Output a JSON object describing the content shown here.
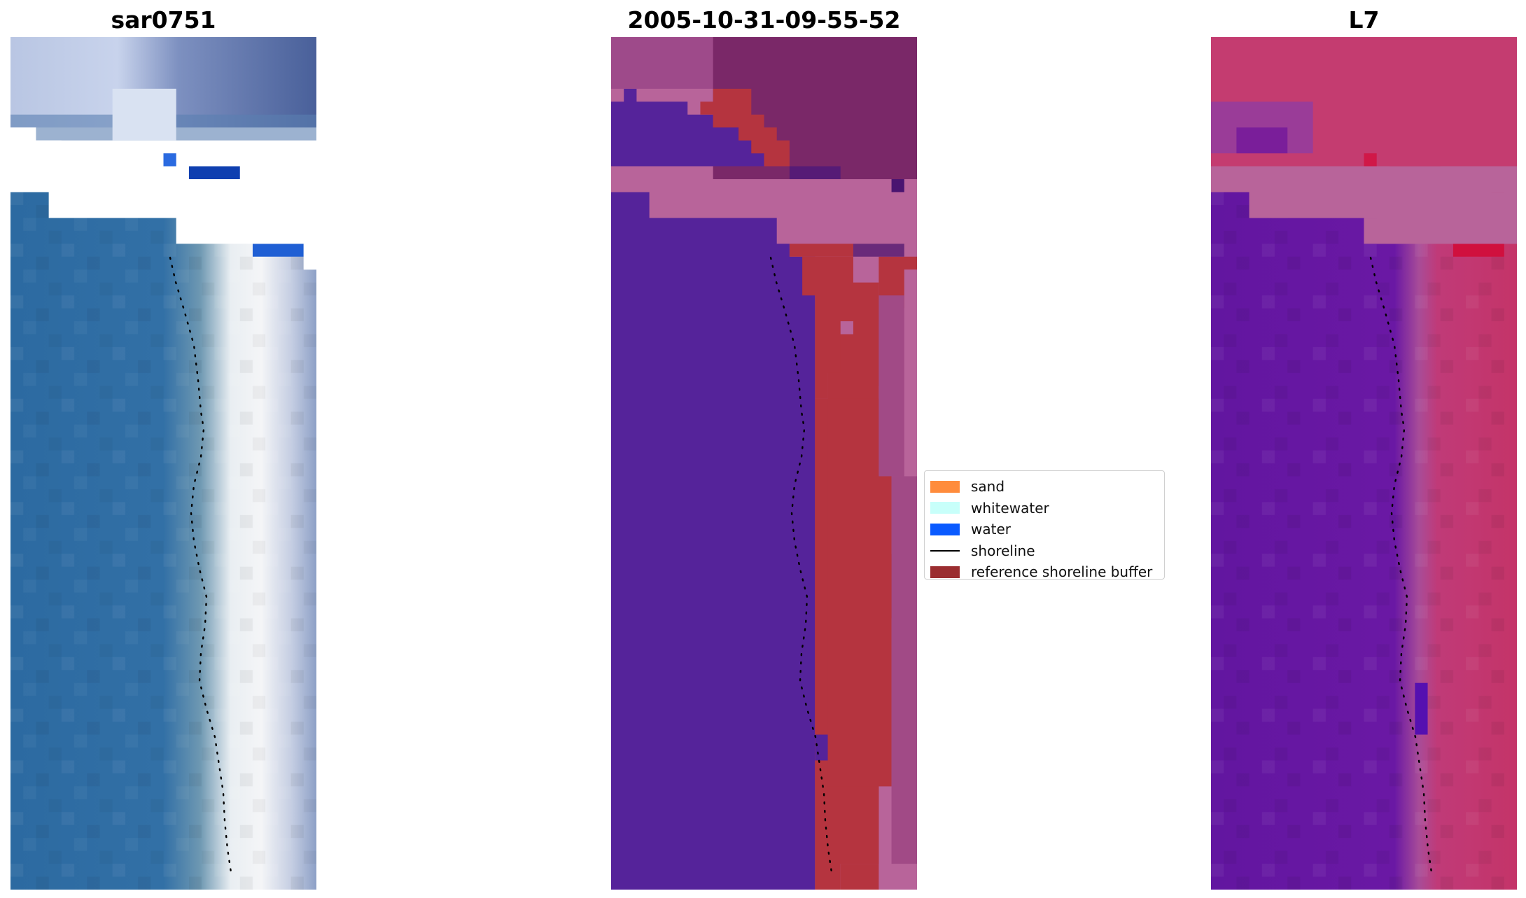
{
  "panels": [
    {
      "id": "rgb",
      "title": "sar0751"
    },
    {
      "id": "class",
      "title": "2005-10-31-09-55-52"
    },
    {
      "id": "index",
      "title": "L7"
    }
  ],
  "legend": {
    "placement": "center",
    "items": [
      {
        "label": "sand",
        "color": "#FF8C3C",
        "kind": "patch"
      },
      {
        "label": "whitewater",
        "color": "#C8FFFA",
        "kind": "patch"
      },
      {
        "label": "water",
        "color": "#0A5AFF",
        "kind": "patch"
      },
      {
        "label": "shoreline",
        "color": "#000000",
        "kind": "line"
      },
      {
        "label": "reference shoreline buffer",
        "color": "#9B2D30",
        "kind": "patch"
      }
    ]
  }
}
